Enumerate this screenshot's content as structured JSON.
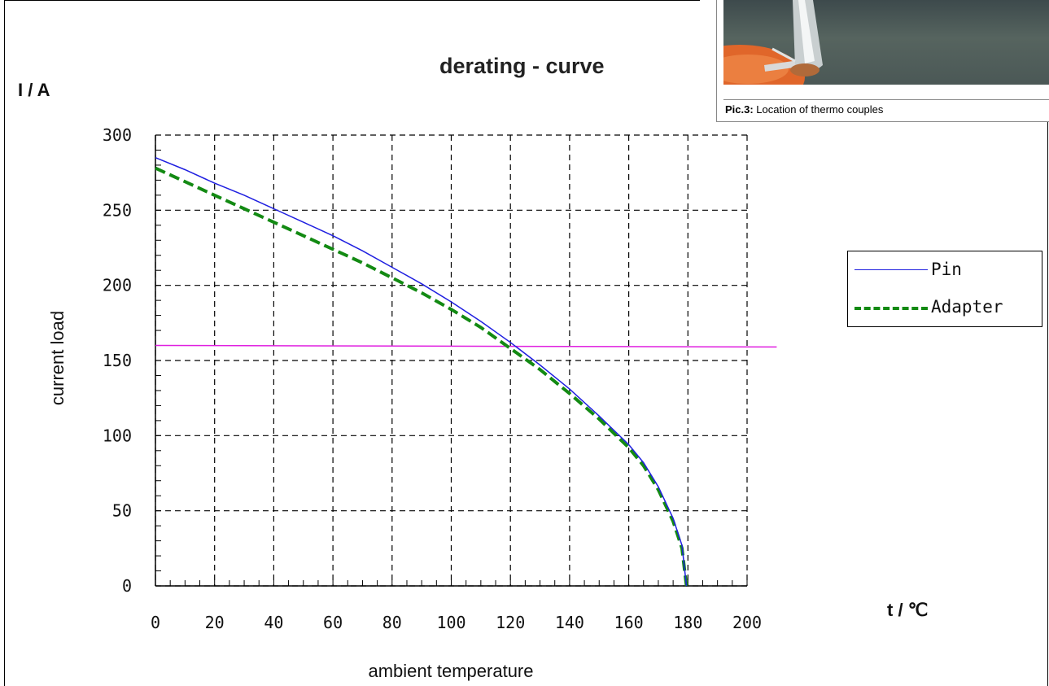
{
  "caption": {
    "label": "Pic.3:",
    "text": " Location of thermo couples"
  },
  "chart_data": {
    "type": "line",
    "title": "derating - curve",
    "xlabel": "ambient temperature",
    "ylabel": "current load",
    "x_unit": "t / ℃",
    "y_unit": "I / A",
    "xlim": [
      0,
      200
    ],
    "ylim": [
      0,
      300
    ],
    "xticks": [
      0,
      20,
      40,
      60,
      80,
      100,
      120,
      140,
      160,
      180,
      200
    ],
    "yticks": [
      0,
      50,
      100,
      150,
      200,
      250,
      300
    ],
    "grid": true,
    "legend_position": "right",
    "series": [
      {
        "name": "Pin",
        "color": "#1f1fe0",
        "style": "solid",
        "x": [
          0,
          10,
          20,
          30,
          40,
          50,
          60,
          70,
          80,
          90,
          100,
          110,
          120,
          130,
          140,
          150,
          160,
          165,
          170,
          175,
          178,
          179.5
        ],
        "y": [
          285,
          277,
          268,
          260,
          251,
          242,
          233,
          223,
          212,
          201,
          189,
          176,
          162,
          147,
          131,
          113,
          94,
          82,
          66,
          45,
          27,
          0
        ]
      },
      {
        "name": "Adapter",
        "color": "#138a13",
        "style": "dashed",
        "x": [
          0,
          10,
          20,
          30,
          40,
          50,
          60,
          70,
          80,
          90,
          100,
          110,
          120,
          130,
          140,
          150,
          160,
          165,
          170,
          175,
          178,
          179.5
        ],
        "y": [
          278,
          269,
          260,
          251,
          242,
          233,
          224,
          215,
          205,
          195,
          184,
          172,
          158,
          144,
          128,
          111,
          92,
          80,
          64,
          43,
          25,
          0
        ]
      },
      {
        "name": "",
        "color": "#e020e0",
        "style": "solid",
        "x": [
          0,
          210
        ],
        "y": [
          160,
          159
        ]
      }
    ]
  }
}
